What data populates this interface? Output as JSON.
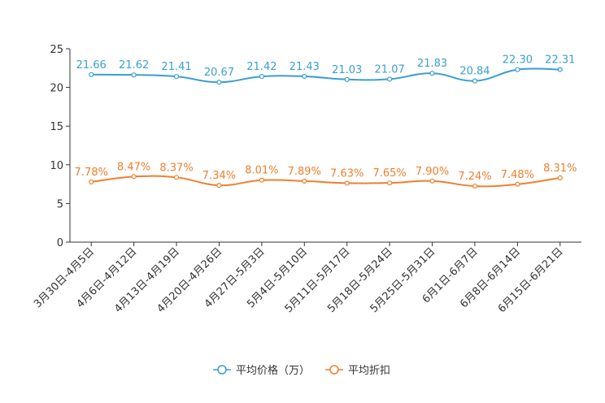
{
  "chart_data": {
    "type": "line",
    "categories": [
      "3月30日-4月5日",
      "4月6日-4月12日",
      "4月13日-4月19日",
      "4月20日-4月26日",
      "4月27日-5月3日",
      "5月4日-5月10日",
      "5月11日-5月17日",
      "5月18日-5月24日",
      "5月25日-5月31日",
      "6月1日-6月7日",
      "6月8日-6月14日",
      "6月15日-6月21日"
    ],
    "series": [
      {
        "name": "平均价格（万）",
        "color": "#3a9fd1",
        "values": [
          21.66,
          21.62,
          21.41,
          20.67,
          21.42,
          21.43,
          21.03,
          21.07,
          21.83,
          20.84,
          22.3,
          22.31
        ],
        "labels": [
          "21.66",
          "21.62",
          "21.41",
          "20.67",
          "21.42",
          "21.43",
          "21.03",
          "21.07",
          "21.83",
          "20.84",
          "22.30",
          "22.31"
        ]
      },
      {
        "name": "平均折扣",
        "color": "#f07f2d",
        "values": [
          7.78,
          8.47,
          8.37,
          7.34,
          8.01,
          7.89,
          7.63,
          7.65,
          7.9,
          7.24,
          7.48,
          8.31
        ],
        "labels": [
          "7.78%",
          "8.47%",
          "8.37%",
          "7.34%",
          "8.01%",
          "7.89%",
          "7.63%",
          "7.65%",
          "7.90%",
          "7.24%",
          "7.48%",
          "8.31%"
        ]
      }
    ],
    "yticks": [
      "0",
      "5",
      "10",
      "15",
      "20",
      "25"
    ],
    "ylim": [
      0,
      25
    ],
    "title": "",
    "xlabel": "",
    "ylabel": "",
    "legend_position": "bottom-center"
  }
}
